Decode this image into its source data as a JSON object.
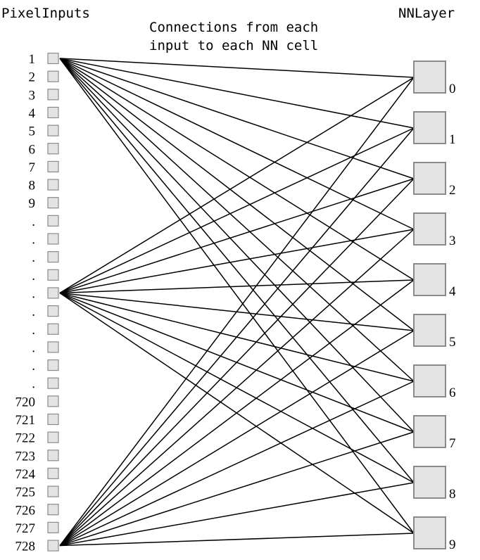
{
  "left_heading": "PixelInputs",
  "right_heading": "NNLayer",
  "caption": [
    "Connections from each",
    "input to each NN cell"
  ],
  "input_labels": [
    "1",
    "2",
    "3",
    "4",
    "5",
    "6",
    "7",
    "8",
    "9",
    ".",
    ".",
    ".",
    ".",
    ".",
    ".",
    ".",
    ".",
    ".",
    ".",
    "720",
    "721",
    "722",
    "723",
    "724",
    "725",
    "726",
    "727",
    "728"
  ],
  "output_labels": [
    "0",
    "1",
    "2",
    "3",
    "4",
    "5",
    "6",
    "7",
    "8",
    "9"
  ],
  "connected_inputs": [
    "1",
    "14th",
    "728"
  ]
}
